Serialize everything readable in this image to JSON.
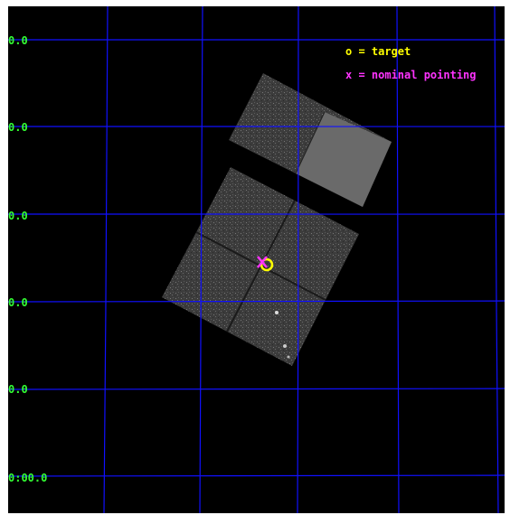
{
  "legend": {
    "target": "o = target",
    "nominal": "x = nominal pointing"
  },
  "axis": {
    "dec_tick_labels": [
      "0.0",
      "0.0",
      "0.0",
      "0.0",
      "0.0",
      "0:00.0"
    ]
  },
  "colors": {
    "background": "#000000",
    "grid": "#1010ff",
    "tick_label": "#33ff33",
    "target": "#ffff00",
    "nominal": "#ff33ff",
    "detector": "#4a4a4a",
    "detector_bright": "#6e6e6e"
  }
}
